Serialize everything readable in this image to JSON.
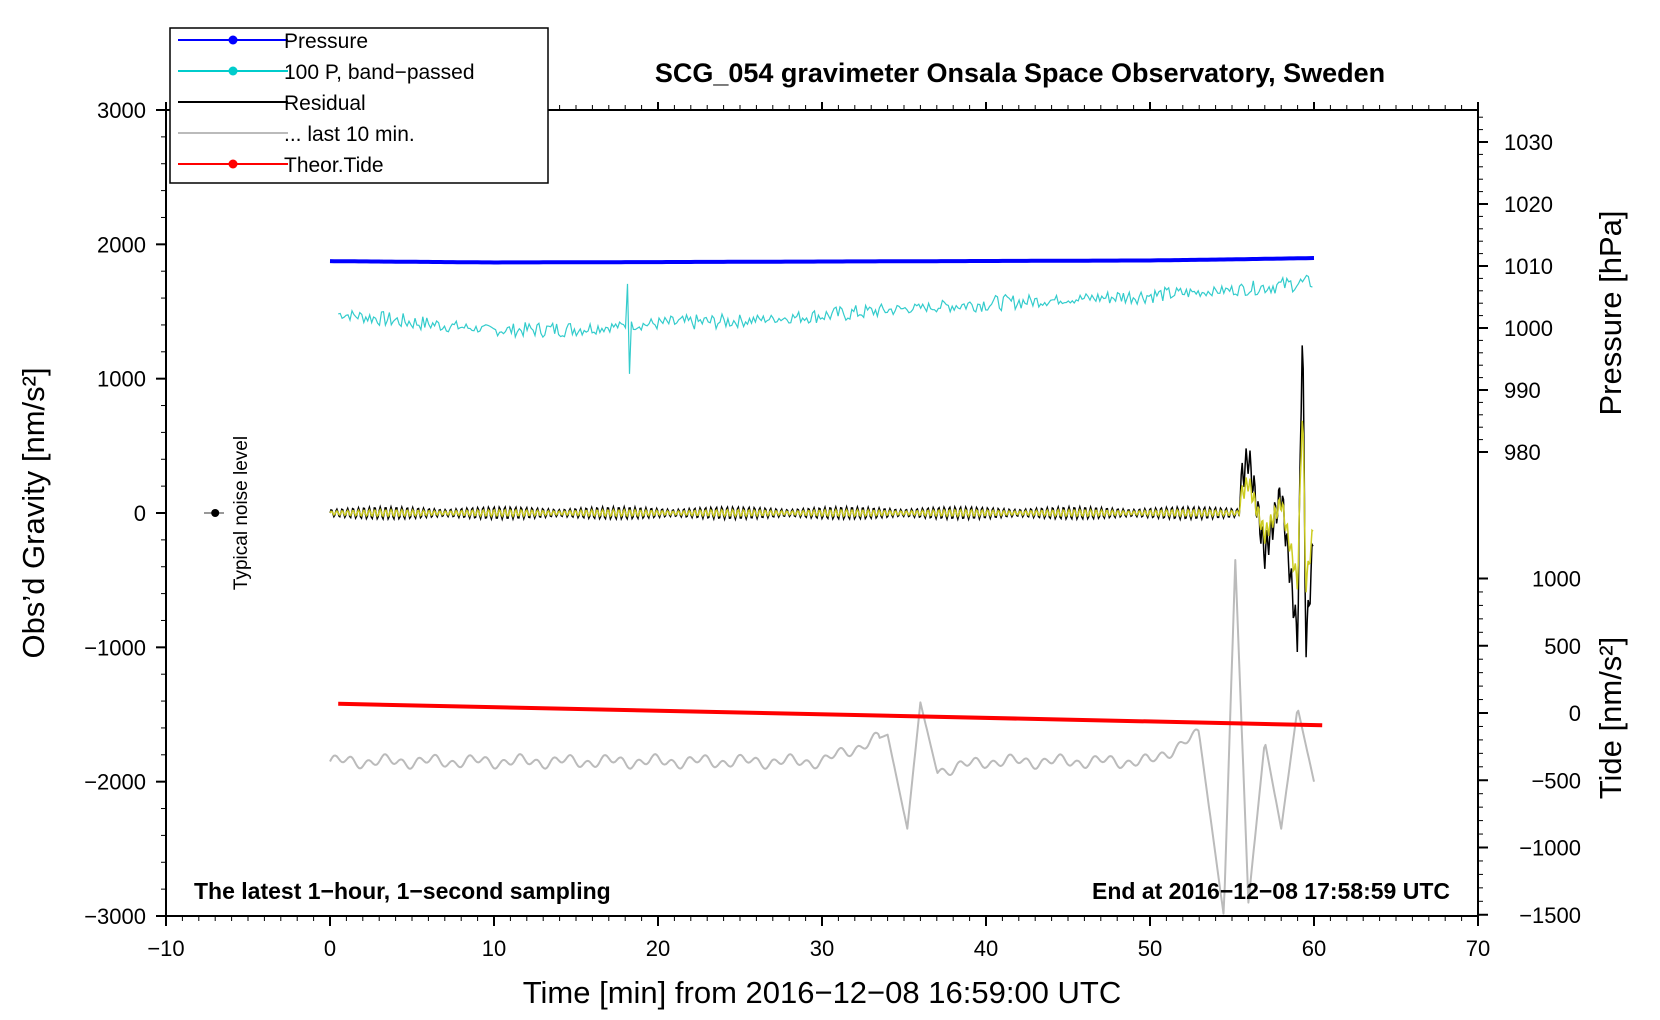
{
  "chart_data": {
    "type": "line",
    "title": "SCG_054 gravimeter Onsala Space Observatory, Sweden",
    "xlabel": "Time [min] from 2016−12−08 16:59:00 UTC",
    "ylabel_left": "Obs’d Gravity [nm/s²]",
    "ylabel_right_top": "Pressure [hPa]",
    "ylabel_right_bottom": "Tide [nm/s²]",
    "xlim": [
      -10,
      70
    ],
    "ylim": [
      -3000,
      3000
    ],
    "pressure_axis": {
      "ticks": [
        980,
        990,
        1000,
        1010,
        1020,
        1030
      ],
      "labels": [
        "980",
        "990",
        "1000",
        "1010",
        "1020",
        "1030"
      ]
    },
    "tide_axis": {
      "ticks": [
        -1500,
        -1000,
        -500,
        0,
        500,
        1000
      ],
      "labels": [
        "−1500",
        "−1000",
        "−500",
        "0",
        "500",
        "1000"
      ]
    },
    "x_ticks": [
      -10,
      0,
      10,
      20,
      30,
      40,
      50,
      60,
      70
    ],
    "x_tick_labels": [
      "−10",
      "0",
      "10",
      "20",
      "30",
      "40",
      "50",
      "60",
      "70"
    ],
    "y_ticks": [
      -3000,
      -2000,
      -1000,
      0,
      1000,
      2000,
      3000
    ],
    "y_tick_labels": [
      "−3000",
      "−2000",
      "−1000",
      "0",
      "1000",
      "2000",
      "3000"
    ],
    "legend": [
      {
        "label": "Pressure",
        "color": "#0000ff",
        "marker": true
      },
      {
        "label": "100 P, band−passed",
        "color": "#00cccc",
        "marker": true
      },
      {
        "label": "Residual",
        "color": "#000000",
        "marker": false
      },
      {
        "label": "... last 10 min.",
        "color": "#bbbbbb",
        "marker": false
      },
      {
        "label": "Theor.Tide",
        "color": "#ff0000",
        "marker": true
      }
    ],
    "series": [
      {
        "name": "Pressure",
        "color": "#0000ff",
        "x": [
          0,
          10,
          20,
          30,
          40,
          50,
          55,
          60
        ],
        "y": [
          1875,
          1865,
          1868,
          1872,
          1876,
          1880,
          1888,
          1898
        ]
      },
      {
        "name": "100 P, band-passed",
        "color": "#33cccc",
        "x": [
          0,
          5,
          10,
          15,
          20,
          25,
          30,
          35,
          40,
          45,
          50,
          55,
          60
        ],
        "y": [
          1490,
          1420,
          1360,
          1370,
          1410,
          1430,
          1470,
          1520,
          1560,
          1590,
          1620,
          1660,
          1720
        ]
      },
      {
        "name": "Residual",
        "color": "#000000",
        "x": [
          0,
          10,
          20,
          30,
          40,
          50,
          55,
          56,
          57,
          58,
          59,
          59.3,
          59.5,
          60
        ],
        "y": [
          0,
          0,
          0,
          0,
          0,
          0,
          0,
          420,
          -300,
          150,
          -950,
          1500,
          -1000,
          -150
        ]
      },
      {
        "name": "... last 10 min.",
        "color": "#bbbbbb",
        "x": [
          0,
          10,
          20,
          30,
          34,
          35.2,
          36,
          37,
          40,
          45,
          50,
          53,
          54.5,
          55.2,
          56,
          57,
          58,
          59,
          60
        ],
        "y": [
          -1850,
          -1850,
          -1850,
          -1850,
          -1650,
          -2350,
          -1410,
          -1920,
          -1850,
          -1850,
          -1850,
          -1650,
          -3000,
          -350,
          -2900,
          -1700,
          -2350,
          -1450,
          -2000
        ]
      },
      {
        "name": "Theor.Tide",
        "color": "#ff0000",
        "x": [
          0.5,
          60.5
        ],
        "y": [
          -1420,
          -1580
        ]
      }
    ],
    "noise_marker": {
      "label": "Typical noise level",
      "x": -7,
      "y": 0
    },
    "annotations": {
      "bottom_left": "The latest 1−hour, 1−second sampling",
      "bottom_right": "End at 2016−12−08 17:58:59 UTC"
    }
  }
}
